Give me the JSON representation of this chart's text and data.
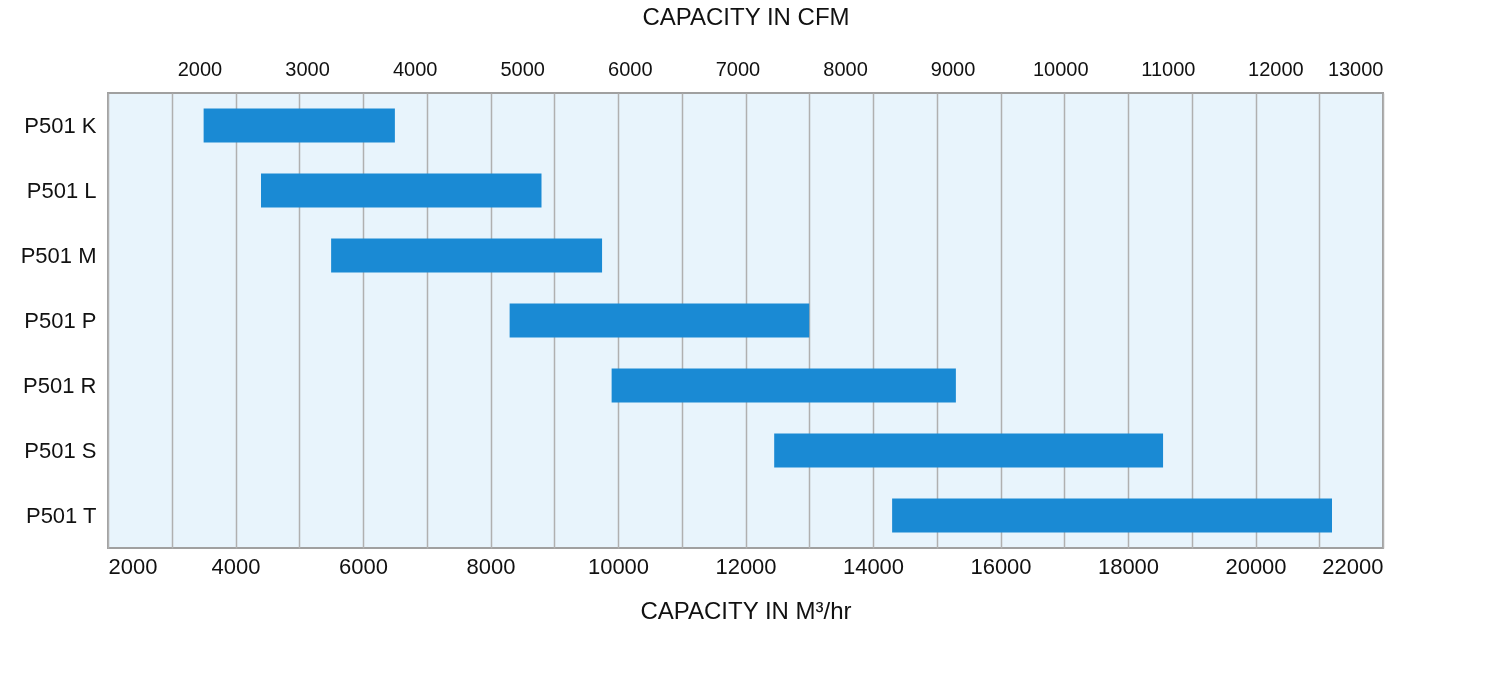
{
  "chart_data": {
    "type": "bar",
    "orientation": "horizontal",
    "xlabel": "CAPACITY IN M³/hr",
    "x2label": "CAPACITY IN CFM",
    "categories": [
      "P501 K",
      "P501 L",
      "P501 M",
      "P501 P",
      "P501 R",
      "P501 S",
      "P501 T"
    ],
    "base": [
      3500,
      4400,
      5500,
      8300,
      9900,
      12450,
      14300
    ],
    "values": [
      3000,
      4400,
      4250,
      4700,
      5400,
      6100,
      6900
    ],
    "color": "#1a8ad4",
    "xlim": [
      2000,
      22000
    ],
    "xticks": [
      2000,
      {
        "value": 3000,
        "label": null
      },
      4000,
      {
        "value": 5000,
        "label": null
      },
      6000,
      {
        "value": 7000,
        "label": null
      },
      8000,
      {
        "value": 9000,
        "label": null
      },
      10000,
      {
        "value": 11000,
        "label": null
      },
      12000,
      {
        "value": 13000,
        "label": null
      },
      14000,
      {
        "value": 15000,
        "label": null
      },
      16000,
      {
        "value": 17000,
        "label": null
      },
      18000,
      {
        "value": 19000,
        "label": null
      },
      20000,
      {
        "value": 21000,
        "label": null
      },
      22000
    ],
    "x2lim": [
      1150,
      13000
    ],
    "x2ticks": [
      2000,
      3000,
      4000,
      5000,
      6000,
      7000,
      8000,
      9000,
      10000,
      11000,
      12000,
      13000
    ],
    "grid": "x"
  }
}
